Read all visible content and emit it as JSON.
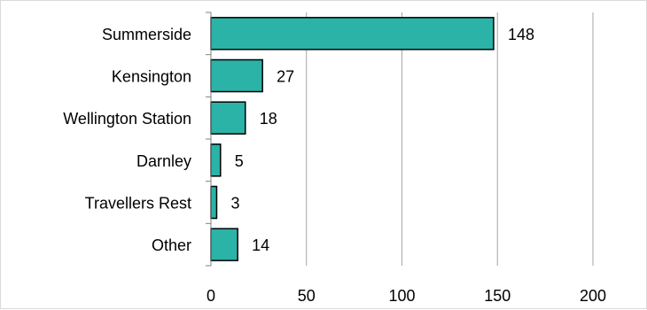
{
  "chart_data": {
    "type": "bar",
    "orientation": "horizontal",
    "categories": [
      "Summerside",
      "Kensington",
      "Wellington Station",
      "Darnley",
      "Travellers Rest",
      "Other"
    ],
    "values": [
      148,
      27,
      18,
      5,
      3,
      14
    ],
    "data_labels": [
      "148",
      "27",
      "18",
      "5",
      "3",
      "14"
    ],
    "x_ticks": [
      "0",
      "50",
      "100",
      "150",
      "200"
    ],
    "xlim": [
      0,
      200
    ],
    "x_tick_step": 50,
    "grid": "vertical",
    "legend": "none",
    "bar_color": "#2BB3A8",
    "bar_edge_color": "#000000",
    "grid_color": "#A6A6A6",
    "axis_color": "#808080"
  }
}
